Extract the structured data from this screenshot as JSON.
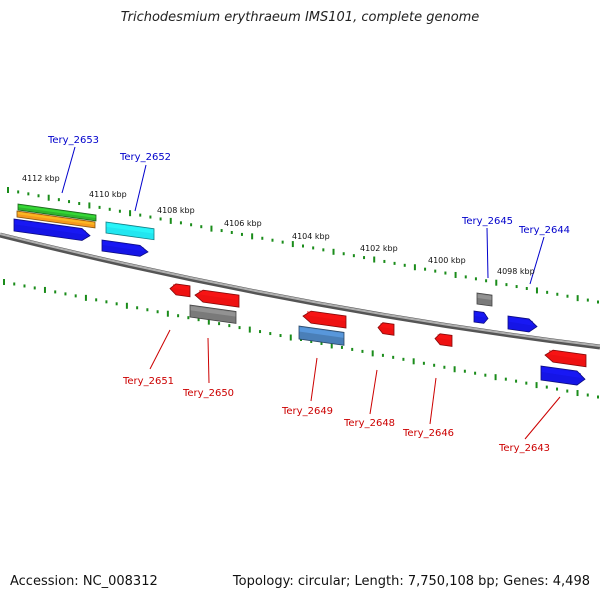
{
  "title": "Trichodesmium erythraeum IMS101, complete genome",
  "accession": "Accession: NC_008312",
  "topology": "Topology: circular; Length: 7,750,108 bp; Genes: 4,498",
  "scale_labels": [
    "4112 kbp",
    "4110 kbp",
    "4108 kbp",
    "4106 kbp",
    "4104 kbp",
    "4102 kbp",
    "4100 kbp",
    "4098 kbp"
  ],
  "genes": [
    {
      "id": "Tery_2653",
      "strand": "+",
      "color": "#0000dd"
    },
    {
      "id": "Tery_2652",
      "strand": "+",
      "color": "#0000dd"
    },
    {
      "id": "Tery_2651",
      "strand": "-",
      "color": "#dd0000"
    },
    {
      "id": "Tery_2650",
      "strand": "-",
      "color": "#dd0000"
    },
    {
      "id": "Tery_2649",
      "strand": "-",
      "color": "#dd0000"
    },
    {
      "id": "Tery_2648",
      "strand": "-",
      "color": "#dd0000"
    },
    {
      "id": "Tery_2646",
      "strand": "-",
      "color": "#dd0000"
    },
    {
      "id": "Tery_2645",
      "strand": "+",
      "color": "#0000dd"
    },
    {
      "id": "Tery_2644",
      "strand": "+",
      "color": "#0000dd"
    },
    {
      "id": "Tery_2643",
      "strand": "-",
      "color": "#dd0000"
    }
  ],
  "colors": {
    "forward_gene": "#1515e6",
    "reverse_gene": "#ee1111",
    "rna_gene": "#7a7a7a",
    "cyan_feature": "#22e6f0",
    "steelblue_feature": "#4a7fb8",
    "green_feature": "#2db52d",
    "orange_feature": "#f79a1c",
    "backbone": "#8a8a8a",
    "tick": "#1a8c1a"
  }
}
